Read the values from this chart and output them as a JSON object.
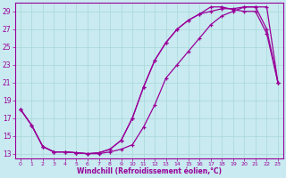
{
  "xlabel": "Windchill (Refroidissement éolien,°C)",
  "background_color": "#c8eaf0",
  "grid_color": "#a8d8d8",
  "line_color": "#990099",
  "xlim": [
    -0.5,
    23.5
  ],
  "ylim": [
    12.5,
    30.0
  ],
  "xticks": [
    0,
    1,
    2,
    3,
    4,
    5,
    6,
    7,
    8,
    9,
    10,
    11,
    12,
    13,
    14,
    15,
    16,
    17,
    18,
    19,
    20,
    21,
    22,
    23
  ],
  "yticks": [
    13,
    15,
    17,
    19,
    21,
    23,
    25,
    27,
    29
  ],
  "curve1_x": [
    0,
    1,
    2,
    3,
    4,
    5,
    6,
    7,
    8,
    9,
    10,
    11,
    12,
    13,
    14,
    15,
    16,
    17,
    18,
    19,
    20,
    21,
    22,
    23
  ],
  "curve1_y": [
    18.0,
    16.2,
    13.8,
    13.2,
    13.2,
    13.1,
    13.0,
    13.0,
    13.2,
    13.5,
    14.0,
    16.0,
    18.5,
    21.5,
    23.0,
    24.5,
    26.0,
    27.5,
    28.5,
    29.0,
    29.5,
    29.5,
    29.5,
    21.0
  ],
  "curve2_x": [
    0,
    1,
    2,
    3,
    4,
    5,
    6,
    7,
    8,
    9,
    10,
    11,
    12,
    13,
    14,
    15,
    16,
    17,
    18,
    19,
    20,
    21,
    22,
    23
  ],
  "curve2_y": [
    18.0,
    16.2,
    13.8,
    13.2,
    13.2,
    13.1,
    13.0,
    13.1,
    13.5,
    14.5,
    17.0,
    20.5,
    23.5,
    25.5,
    27.0,
    28.0,
    28.7,
    29.0,
    29.3,
    29.3,
    29.5,
    29.5,
    27.0,
    21.0
  ],
  "curve3_x": [
    0,
    1,
    2,
    3,
    4,
    5,
    6,
    7,
    8,
    9,
    10,
    11,
    12,
    13,
    14,
    15,
    16,
    17,
    18,
    19,
    20,
    21,
    22,
    23
  ],
  "curve3_y": [
    18.0,
    16.2,
    13.8,
    13.2,
    13.2,
    13.1,
    13.0,
    13.1,
    13.5,
    14.5,
    17.0,
    20.5,
    23.5,
    25.5,
    27.0,
    28.0,
    28.7,
    29.5,
    29.5,
    29.2,
    29.0,
    29.0,
    26.5,
    21.0
  ]
}
